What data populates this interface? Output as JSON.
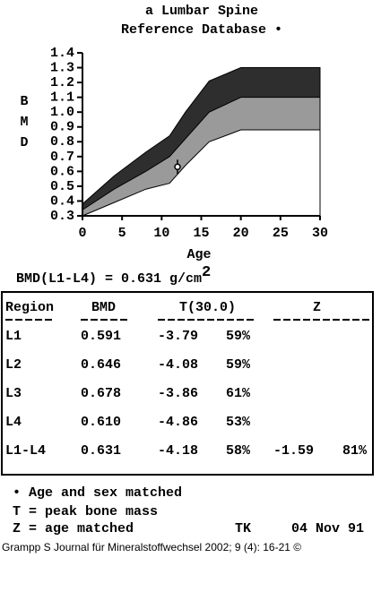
{
  "chart_data": {
    "type": "band-area",
    "title": "a Lumbar Spine",
    "subtitle": "Reference Database •",
    "x_label": "Age",
    "y_label": "BMD",
    "x": [
      0,
      4,
      8,
      11,
      13,
      16,
      20,
      30
    ],
    "series": [
      {
        "color": "#2e2e2e",
        "values": [
          0.38,
          0.57,
          0.73,
          0.84,
          1.0,
          1.21,
          1.3,
          1.3
        ]
      },
      {
        "color": "#9a9a9a",
        "values": [
          0.34,
          0.48,
          0.6,
          0.7,
          0.82,
          1.0,
          1.1,
          1.1
        ]
      },
      {
        "color": "#ffffff",
        "values": [
          0.3,
          0.39,
          0.48,
          0.52,
          0.64,
          0.8,
          0.88,
          0.88
        ]
      }
    ],
    "point": {
      "x": 12,
      "y": 0.631
    },
    "xlim": [
      0,
      30
    ],
    "xticks": [
      0,
      5,
      10,
      15,
      20,
      25,
      30
    ],
    "ylim": [
      0.3,
      1.4
    ],
    "yticks": [
      0.3,
      0.4,
      0.5,
      0.6,
      0.7,
      0.8,
      0.9,
      {
        "value": 1,
        "label": "1.0"
      },
      1.1,
      1.2,
      1.3,
      1.4
    ]
  },
  "report": {
    "summary": {
      "label": "BMD(L1-L4) = 0.631 g/cm",
      "sup": "2"
    },
    "table": {
      "header": [
        "Region",
        "BMD",
        "T(30.0)",
        "Z"
      ],
      "rows": [
        [
          "L1",
          "0.591",
          "-3.79",
          "59%",
          null,
          null
        ],
        [
          "L2",
          "0.646",
          "-4.08",
          "59%",
          null,
          null
        ],
        [
          "L3",
          "0.678",
          "-3.86",
          "61%",
          null,
          null
        ],
        [
          "L4",
          "0.610",
          "-4.86",
          "53%",
          null,
          null
        ],
        [
          "L1-L4",
          "0.631",
          "-4.18",
          "58%",
          "-1.59",
          "81%"
        ]
      ]
    },
    "notes": [
      "• Age and sex matched",
      "T = peak bone mass",
      "Z = age matched"
    ],
    "operator": "TK",
    "date": "04 Nov 91",
    "caption": "Grampp S Journal für Mineralstoffwechsel 2002; 9 (4): 16-21 ©"
  }
}
